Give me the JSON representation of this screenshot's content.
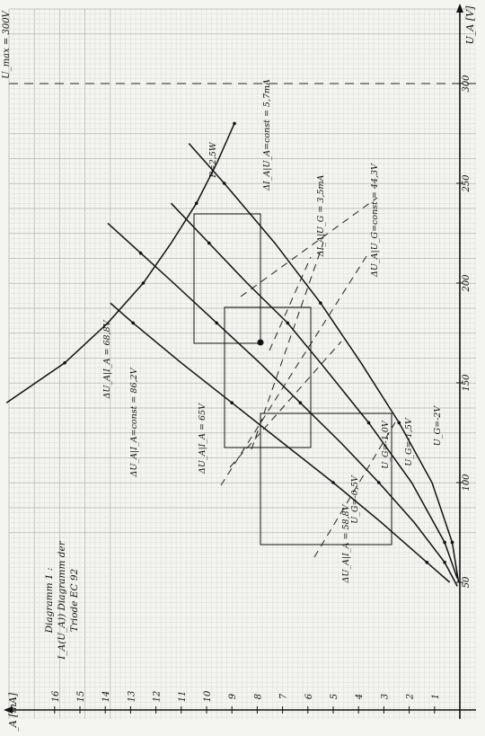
{
  "chart_data": {
    "type": "line",
    "orientation": "rotated-90ccw",
    "title": "Diagramm 1: I_A(U_A)) Diagramm der Triode EC 92",
    "title_lines": [
      "Diagramm 1 :",
      "I_A(U_A)) Diagramm der",
      "Triode EC 92"
    ],
    "xlabel": "U_A [V]",
    "ylabel": "I_A [mA]",
    "xlim": [
      40,
      310
    ],
    "ylim": [
      0,
      17
    ],
    "x_ticks": [
      50,
      100,
      150,
      200,
      250,
      300
    ],
    "y_ticks": [
      1,
      2,
      3,
      4,
      5,
      6,
      7,
      8,
      9,
      10,
      11,
      12,
      13,
      14,
      15,
      16
    ],
    "grid": true,
    "umax_label": "U_max = 300V",
    "umax_value": 300,
    "series": [
      {
        "name": "U_G=-0,5V",
        "x": [
          50,
          60,
          80,
          100,
          120,
          140,
          160,
          180,
          190
        ],
        "y": [
          0.4,
          1.3,
          3.1,
          5.0,
          7.0,
          9.0,
          11.0,
          12.9,
          13.8
        ]
      },
      {
        "name": "U_G=-1,0V",
        "x": [
          48,
          60,
          80,
          100,
          120,
          140,
          160,
          180,
          200,
          215,
          230
        ],
        "y": [
          0.1,
          0.6,
          1.8,
          3.2,
          4.7,
          6.3,
          7.9,
          9.6,
          11.3,
          12.6,
          13.9
        ]
      },
      {
        "name": "U_G=-1,5V",
        "x": [
          52,
          70,
          100,
          130,
          160,
          180,
          200,
          220,
          240
        ],
        "y": [
          0.1,
          0.6,
          1.9,
          3.6,
          5.5,
          6.8,
          8.4,
          9.9,
          11.4
        ]
      },
      {
        "name": "U_G=-2V",
        "x": [
          50,
          70,
          100,
          130,
          160,
          190,
          220,
          250,
          270
        ],
        "y": [
          0.05,
          0.3,
          1.1,
          2.4,
          3.9,
          5.5,
          7.3,
          9.3,
          10.7
        ]
      },
      {
        "name": "P=2,5W",
        "x": [
          140,
          160,
          180,
          200,
          220,
          240,
          260,
          280
        ],
        "y": [
          17.9,
          15.6,
          13.9,
          12.5,
          11.4,
          10.4,
          9.6,
          8.9
        ]
      }
    ],
    "annotations": [
      "ΔU_A|I_A = 68,8V",
      "ΔU_A|I_A=const = 86,2V",
      "ΔU_A|I_A = 65V",
      "ΔU_A|I_A = 58,8V",
      "ΔI_A|U_A=const = 5,7mA",
      "ΔI_A|U_G = 3,5mA",
      "ΔU_A|U_G=const = 44,3V"
    ]
  }
}
